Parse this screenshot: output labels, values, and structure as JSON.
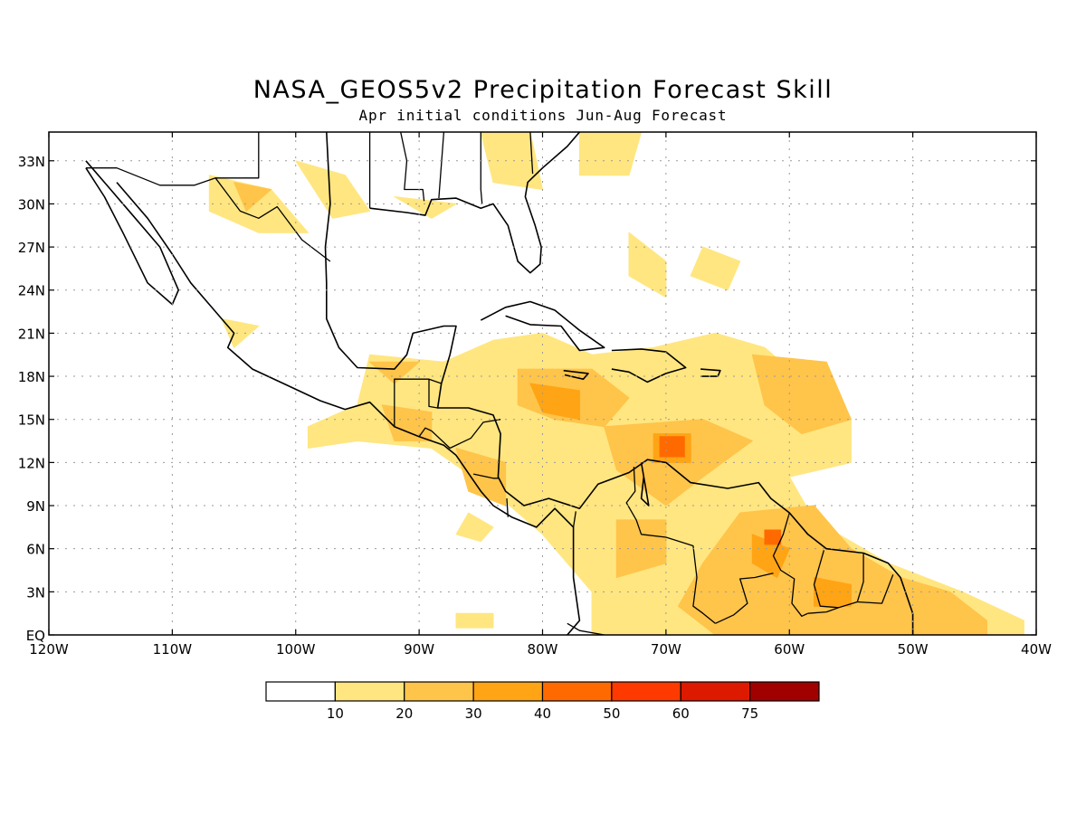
{
  "header": {
    "title": "NASA_GEOS5v2 Precipitation Forecast Skill",
    "subtitle": "Apr initial conditions  Jun-Aug Forecast"
  },
  "map": {
    "lon_range": [
      -120,
      -40
    ],
    "lat_range": [
      0,
      35
    ],
    "lon_ticks": [
      {
        "lon": -120,
        "label": "120W"
      },
      {
        "lon": -110,
        "label": "110W"
      },
      {
        "lon": -100,
        "label": "100W"
      },
      {
        "lon": -90,
        "label": "90W"
      },
      {
        "lon": -80,
        "label": "80W"
      },
      {
        "lon": -70,
        "label": "70W"
      },
      {
        "lon": -60,
        "label": "60W"
      },
      {
        "lon": -50,
        "label": "50W"
      },
      {
        "lon": -40,
        "label": "40W"
      }
    ],
    "lat_ticks": [
      {
        "lat": 0,
        "label": "EQ"
      },
      {
        "lat": 3,
        "label": "3N"
      },
      {
        "lat": 6,
        "label": "6N"
      },
      {
        "lat": 9,
        "label": "9N"
      },
      {
        "lat": 12,
        "label": "12N"
      },
      {
        "lat": 15,
        "label": "15N"
      },
      {
        "lat": 18,
        "label": "18N"
      },
      {
        "lat": 21,
        "label": "21N"
      },
      {
        "lat": 24,
        "label": "24N"
      },
      {
        "lat": 27,
        "label": "27N"
      },
      {
        "lat": 30,
        "label": "30N"
      },
      {
        "lat": 33,
        "label": "33N"
      }
    ],
    "grid": "dotted"
  },
  "colorbar": {
    "levels": [
      "10",
      "20",
      "30",
      "40",
      "50",
      "60",
      "75"
    ],
    "colors": [
      "#ffffff",
      "#ffe680",
      "#ffc44a",
      "#ffa414",
      "#ff6a00",
      "#ff3a00",
      "#dd1a00",
      "#a00000"
    ]
  },
  "skill_regions": [
    {
      "level": 1,
      "points": [
        [
          -94,
          19.5
        ],
        [
          -88,
          19
        ],
        [
          -84,
          20.5
        ],
        [
          -80,
          21
        ],
        [
          -76,
          19.5
        ],
        [
          -71,
          20
        ],
        [
          -66,
          21
        ],
        [
          -62,
          20
        ],
        [
          -58,
          17
        ],
        [
          -55,
          15
        ],
        [
          -55,
          12
        ],
        [
          -60,
          11
        ],
        [
          -58,
          8
        ],
        [
          -52,
          5
        ],
        [
          -46,
          3
        ],
        [
          -41,
          1
        ],
        [
          -41,
          0
        ],
        [
          -76,
          0
        ],
        [
          -76,
          3
        ],
        [
          -80,
          7
        ],
        [
          -84,
          10
        ],
        [
          -89,
          13
        ],
        [
          -95,
          13.5
        ],
        [
          -99,
          13
        ],
        [
          -99,
          14.5
        ],
        [
          -95,
          16
        ]
      ]
    },
    {
      "level": 1,
      "points": [
        [
          -107,
          32
        ],
        [
          -102,
          31
        ],
        [
          -99,
          28
        ],
        [
          -103,
          28
        ],
        [
          -107,
          29.5
        ]
      ]
    },
    {
      "level": 1,
      "points": [
        [
          -100,
          33
        ],
        [
          -96,
          32
        ],
        [
          -94,
          29.5
        ],
        [
          -97,
          29
        ]
      ]
    },
    {
      "level": 1,
      "points": [
        [
          -85,
          35
        ],
        [
          -81,
          35
        ],
        [
          -80,
          31
        ],
        [
          -84,
          31.5
        ]
      ]
    },
    {
      "level": 1,
      "points": [
        [
          -77,
          35
        ],
        [
          -72,
          35
        ],
        [
          -73,
          32
        ],
        [
          -77,
          32
        ]
      ]
    },
    {
      "level": 1,
      "points": [
        [
          -92,
          30.5
        ],
        [
          -87,
          30
        ],
        [
          -89,
          29
        ]
      ]
    },
    {
      "level": 1,
      "points": [
        [
          -73,
          28
        ],
        [
          -70,
          26
        ],
        [
          -70,
          23.5
        ],
        [
          -73,
          25
        ]
      ]
    },
    {
      "level": 1,
      "points": [
        [
          -67,
          27
        ],
        [
          -64,
          26
        ],
        [
          -65,
          24
        ],
        [
          -68,
          25
        ]
      ]
    },
    {
      "level": 1,
      "points": [
        [
          -106,
          22
        ],
        [
          -103,
          21.5
        ],
        [
          -105,
          20
        ]
      ]
    },
    {
      "level": 1,
      "points": [
        [
          -86,
          8.5
        ],
        [
          -84,
          7.5
        ],
        [
          -85,
          6.5
        ],
        [
          -87,
          7
        ]
      ]
    },
    {
      "level": 1,
      "points": [
        [
          -87,
          1.5
        ],
        [
          -84,
          1.5
        ],
        [
          -84,
          0.5
        ],
        [
          -87,
          0.5
        ]
      ]
    },
    {
      "level": 2,
      "points": [
        [
          -82,
          18.5
        ],
        [
          -76,
          18.5
        ],
        [
          -73,
          16.5
        ],
        [
          -75,
          14.5
        ],
        [
          -79,
          15
        ],
        [
          -82,
          16
        ]
      ]
    },
    {
      "level": 2,
      "points": [
        [
          -75,
          14.5
        ],
        [
          -67,
          15
        ],
        [
          -63,
          13.5
        ],
        [
          -67,
          11
        ],
        [
          -70,
          9
        ],
        [
          -74,
          11.5
        ]
      ]
    },
    {
      "level": 2,
      "points": [
        [
          -63,
          19.5
        ],
        [
          -57,
          19
        ],
        [
          -55,
          15
        ],
        [
          -59,
          14
        ],
        [
          -62,
          16
        ]
      ]
    },
    {
      "level": 2,
      "points": [
        [
          -64,
          8.5
        ],
        [
          -58,
          9
        ],
        [
          -55,
          6
        ],
        [
          -51,
          4
        ],
        [
          -47,
          3
        ],
        [
          -44,
          1
        ],
        [
          -44,
          0
        ],
        [
          -66,
          0
        ],
        [
          -69,
          2
        ],
        [
          -67,
          5
        ]
      ]
    },
    {
      "level": 2,
      "points": [
        [
          -93,
          16
        ],
        [
          -89,
          15.5
        ],
        [
          -89,
          13.5
        ],
        [
          -92,
          13.5
        ]
      ]
    },
    {
      "level": 2,
      "points": [
        [
          -87,
          13
        ],
        [
          -83,
          12
        ],
        [
          -83,
          9
        ],
        [
          -86,
          10
        ]
      ]
    },
    {
      "level": 2,
      "points": [
        [
          -74,
          8
        ],
        [
          -70,
          8
        ],
        [
          -70,
          5
        ],
        [
          -74,
          4
        ]
      ]
    },
    {
      "level": 2,
      "points": [
        [
          -94,
          19
        ],
        [
          -90,
          19
        ],
        [
          -92,
          17.5
        ]
      ]
    },
    {
      "level": 2,
      "points": [
        [
          -105,
          31.5
        ],
        [
          -102,
          31
        ],
        [
          -104,
          29.5
        ]
      ]
    },
    {
      "level": 3,
      "points": [
        [
          -81,
          17.5
        ],
        [
          -77,
          17
        ],
        [
          -77,
          15
        ],
        [
          -80,
          15.5
        ]
      ]
    },
    {
      "level": 3,
      "points": [
        [
          -71,
          14
        ],
        [
          -68,
          14
        ],
        [
          -68,
          12
        ],
        [
          -71,
          12
        ]
      ]
    },
    {
      "level": 3,
      "points": [
        [
          -63,
          7
        ],
        [
          -60,
          6
        ],
        [
          -61,
          4
        ],
        [
          -63,
          5
        ]
      ]
    },
    {
      "level": 3,
      "points": [
        [
          -58,
          4
        ],
        [
          -55,
          3.5
        ],
        [
          -55,
          2
        ],
        [
          -58,
          2
        ]
      ]
    },
    {
      "level": 4,
      "points": [
        [
          -70.5,
          13.8
        ],
        [
          -68.5,
          13.8
        ],
        [
          -68.5,
          12.4
        ],
        [
          -70.5,
          12.4
        ]
      ]
    },
    {
      "level": 4,
      "points": [
        [
          -62,
          7.3
        ],
        [
          -60.7,
          7.3
        ],
        [
          -60.7,
          6.3
        ],
        [
          -62,
          6.3
        ]
      ]
    }
  ],
  "coastlines": [
    [
      [
        -117,
        33
      ],
      [
        -115,
        31
      ],
      [
        -113,
        29
      ],
      [
        -111,
        27
      ],
      [
        -109.5,
        24
      ],
      [
        -110,
        23
      ],
      [
        -112,
        24.5
      ],
      [
        -114,
        28
      ],
      [
        -115.5,
        30.5
      ],
      [
        -117,
        32.5
      ]
    ],
    [
      [
        -114.5,
        31.5
      ],
      [
        -112,
        29
      ],
      [
        -110,
        26.5
      ],
      [
        -108.5,
        24.5
      ],
      [
        -107,
        23
      ],
      [
        -105,
        21
      ],
      [
        -105.5,
        20
      ],
      [
        -103.5,
        18.5
      ],
      [
        -101,
        17.5
      ],
      [
        -98,
        16.3
      ],
      [
        -96,
        15.7
      ],
      [
        -94,
        16.2
      ],
      [
        -92,
        14.5
      ],
      [
        -90,
        13.8
      ],
      [
        -88,
        13.2
      ],
      [
        -87,
        12.5
      ],
      [
        -85.8,
        11
      ],
      [
        -85,
        10
      ],
      [
        -84,
        9
      ],
      [
        -82.5,
        8.2
      ],
      [
        -80.5,
        7.5
      ],
      [
        -79,
        8.8
      ],
      [
        -77.5,
        7.5
      ],
      [
        -77.5,
        4
      ],
      [
        -77,
        1
      ],
      [
        -78,
        0
      ]
    ],
    [
      [
        -97.5,
        35
      ],
      [
        -97.2,
        30
      ],
      [
        -97.6,
        27
      ],
      [
        -97.5,
        24.5
      ],
      [
        -97.5,
        22
      ],
      [
        -96.5,
        20
      ],
      [
        -95,
        18.6
      ],
      [
        -92,
        18.5
      ],
      [
        -91,
        19.5
      ],
      [
        -90.5,
        21
      ],
      [
        -88,
        21.5
      ],
      [
        -87,
        21.5
      ],
      [
        -87.5,
        19.5
      ],
      [
        -88.2,
        17.5
      ],
      [
        -88.5,
        15.8
      ],
      [
        -86,
        15.8
      ],
      [
        -84,
        15.3
      ],
      [
        -83.4,
        14
      ],
      [
        -83.6,
        11
      ],
      [
        -83,
        10
      ],
      [
        -81.5,
        9
      ],
      [
        -79.5,
        9.5
      ],
      [
        -77,
        8.8
      ],
      [
        -75.5,
        10.5
      ],
      [
        -73,
        11.3
      ],
      [
        -71.5,
        12.2
      ],
      [
        -70,
        12
      ],
      [
        -68,
        10.6
      ],
      [
        -65,
        10.2
      ],
      [
        -62.5,
        10.6
      ],
      [
        -61.5,
        9.5
      ],
      [
        -60,
        8.5
      ],
      [
        -58.5,
        7
      ],
      [
        -57,
        6
      ],
      [
        -54,
        5.7
      ],
      [
        -52,
        5
      ],
      [
        -51,
        4
      ],
      [
        -50,
        1.5
      ],
      [
        -50,
        0
      ]
    ],
    [
      [
        -94,
        29.7
      ],
      [
        -91,
        29.4
      ],
      [
        -89.5,
        29.2
      ],
      [
        -89,
        30.3
      ],
      [
        -87,
        30.4
      ],
      [
        -85,
        29.7
      ],
      [
        -84,
        30
      ],
      [
        -82.8,
        28.5
      ],
      [
        -82,
        26
      ],
      [
        -81,
        25.2
      ],
      [
        -80.2,
        25.8
      ],
      [
        -80.1,
        27
      ],
      [
        -80.6,
        28.5
      ],
      [
        -81.4,
        30.5
      ],
      [
        -81.2,
        31.5
      ],
      [
        -80,
        32.5
      ],
      [
        -78,
        34
      ],
      [
        -77,
        35
      ]
    ],
    [
      [
        -85,
        21.9
      ],
      [
        -83,
        22.8
      ],
      [
        -81,
        23.2
      ],
      [
        -79,
        22.6
      ],
      [
        -77,
        21.2
      ],
      [
        -75,
        20
      ],
      [
        -77,
        19.8
      ],
      [
        -78.5,
        21.5
      ],
      [
        -81,
        21.6
      ],
      [
        -83,
        22.2
      ]
    ],
    [
      [
        -74.4,
        19.8
      ],
      [
        -72,
        19.9
      ],
      [
        -70,
        19.7
      ],
      [
        -68.4,
        18.6
      ],
      [
        -70,
        18.2
      ],
      [
        -71.5,
        17.6
      ],
      [
        -73,
        18.3
      ],
      [
        -74.4,
        18.5
      ]
    ],
    [
      [
        -78.3,
        18.4
      ],
      [
        -76.3,
        18.2
      ],
      [
        -76.7,
        17.8
      ],
      [
        -78.2,
        18.1
      ]
    ],
    [
      [
        -67.2,
        18.5
      ],
      [
        -65.6,
        18.4
      ],
      [
        -65.8,
        18
      ],
      [
        -67.2,
        18
      ]
    ],
    [
      [
        -72,
        12
      ],
      [
        -71.6,
        10
      ],
      [
        -71.4,
        9
      ],
      [
        -72,
        9.5
      ],
      [
        -71.8,
        11
      ]
    ]
  ],
  "borders": [
    [
      [
        -117,
        32.5
      ],
      [
        -114.5,
        32.5
      ],
      [
        -111,
        31.3
      ],
      [
        -108.2,
        31.3
      ],
      [
        -106.5,
        31.8
      ],
      [
        -104.5,
        29.5
      ],
      [
        -103,
        29
      ],
      [
        -101.5,
        29.8
      ],
      [
        -99.5,
        27.5
      ],
      [
        -97.2,
        26
      ]
    ],
    [
      [
        -106.5,
        31.8
      ],
      [
        -103,
        31.8
      ],
      [
        -103,
        35
      ]
    ],
    [
      [
        -94,
        35
      ],
      [
        -94,
        33
      ],
      [
        -94,
        29.7
      ]
    ],
    [
      [
        -91.5,
        35
      ],
      [
        -91,
        33
      ],
      [
        -91.2,
        31
      ],
      [
        -89.7,
        31
      ],
      [
        -89.6,
        30.2
      ]
    ],
    [
      [
        -88,
        35
      ],
      [
        -88.4,
        30.4
      ]
    ],
    [
      [
        -85,
        35
      ],
      [
        -85,
        31
      ],
      [
        -84.9,
        30
      ]
    ],
    [
      [
        -81,
        35
      ],
      [
        -80.8,
        32.1
      ]
    ],
    [
      [
        -92,
        14.5
      ],
      [
        -92,
        17.8
      ],
      [
        -91,
        17.8
      ],
      [
        -90,
        17.8
      ],
      [
        -89.2,
        17.8
      ],
      [
        -88.2,
        17.5
      ]
    ],
    [
      [
        -89.2,
        17.8
      ],
      [
        -89.2,
        15.9
      ],
      [
        -88.5,
        15.8
      ]
    ],
    [
      [
        -89,
        14.2
      ],
      [
        -89.5,
        14.4
      ],
      [
        -90,
        13.8
      ]
    ],
    [
      [
        -89,
        14.2
      ],
      [
        -87.5,
        13
      ],
      [
        -85.8,
        13.7
      ],
      [
        -84.8,
        14.8
      ],
      [
        -83.4,
        15
      ]
    ],
    [
      [
        -85.6,
        11.2
      ],
      [
        -84,
        10.9
      ],
      [
        -83.6,
        10.9
      ]
    ],
    [
      [
        -82.9,
        9.5
      ],
      [
        -82.8,
        8.2
      ]
    ],
    [
      [
        -77.3,
        8.6
      ],
      [
        -77.5,
        7.5
      ]
    ],
    [
      [
        -72.6,
        11.7
      ],
      [
        -72.5,
        10
      ],
      [
        -73.2,
        9.2
      ],
      [
        -72.4,
        8
      ],
      [
        -72,
        7
      ],
      [
        -70,
        6.8
      ],
      [
        -67.8,
        6.2
      ],
      [
        -67.5,
        4
      ],
      [
        -67.8,
        2
      ],
      [
        -67,
        1.5
      ],
      [
        -66,
        0.8
      ]
    ],
    [
      [
        -78,
        0.8
      ],
      [
        -77,
        0.3
      ],
      [
        -75,
        0
      ]
    ],
    [
      [
        -60,
        8.5
      ],
      [
        -60.5,
        7
      ],
      [
        -61.3,
        5.5
      ],
      [
        -60.7,
        4.5
      ],
      [
        -59.6,
        3.9
      ],
      [
        -59.8,
        2.2
      ],
      [
        -59,
        1.3
      ],
      [
        -58.5,
        1.5
      ]
    ],
    [
      [
        -58.5,
        1.5
      ],
      [
        -57,
        1.6
      ],
      [
        -56,
        1.9
      ],
      [
        -54.5,
        2.3
      ],
      [
        -54,
        3.7
      ],
      [
        -54,
        5.7
      ]
    ],
    [
      [
        -57.2,
        5.9
      ],
      [
        -58,
        3.5
      ],
      [
        -57.5,
        2
      ],
      [
        -56,
        1.9
      ]
    ],
    [
      [
        -54.5,
        2.3
      ],
      [
        -52.5,
        2.2
      ],
      [
        -51.6,
        4.2
      ]
    ],
    [
      [
        -66,
        0.8
      ],
      [
        -64.5,
        1.4
      ],
      [
        -63.4,
        2.2
      ],
      [
        -64,
        3.9
      ],
      [
        -62.8,
        4
      ],
      [
        -61.3,
        4.3
      ]
    ]
  ]
}
